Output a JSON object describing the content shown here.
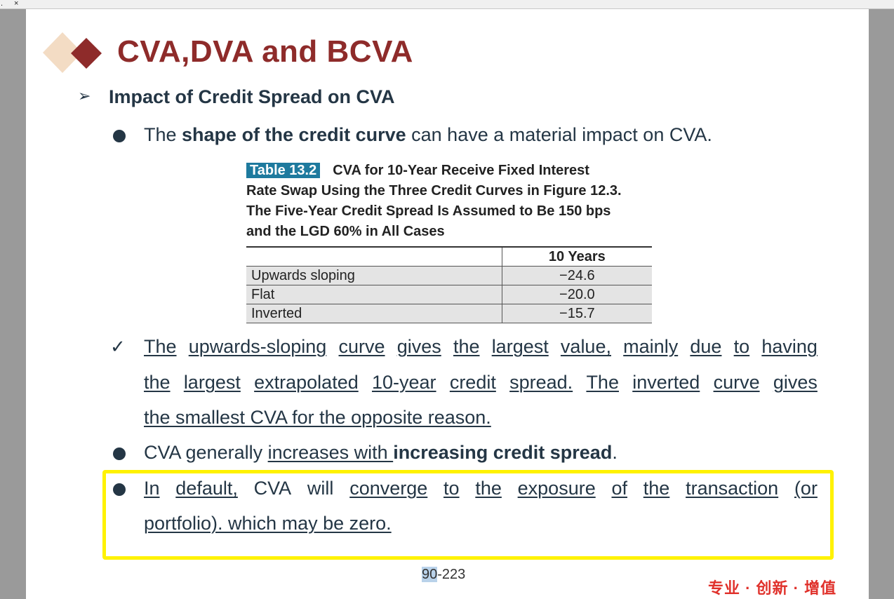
{
  "topbar": {
    "dot": ".",
    "close": "×"
  },
  "slide": {
    "title": "CVA,DVA and BCVA",
    "heading": "Impact of Credit Spread on CVA",
    "bullet1": {
      "pre": "The ",
      "bold": "shape of the credit curve",
      "post": " can have a material impact on CVA."
    },
    "table": {
      "tag": "Table 13.2",
      "caption_lines": [
        "CVA for 10-Year Receive Fixed Interest",
        "Rate Swap Using the Three Credit Curves in Figure 12.3.",
        "The Five-Year Credit Spread Is Assumed to Be 150 bps",
        "and the LGD 60% in All Cases"
      ],
      "column_header": "10 Years",
      "rows": [
        {
          "label": "Upwards sloping",
          "value": "−24.6"
        },
        {
          "label": "Flat",
          "value": "−20.0"
        },
        {
          "label": "Inverted",
          "value": "−15.7"
        }
      ]
    },
    "check_mark": "✓",
    "check_lines": [
      [
        "The",
        "upwards-sloping",
        "curve",
        "gives",
        "the",
        "largest",
        "value,",
        "mainly",
        "due",
        "to",
        "having"
      ],
      [
        "the",
        "largest",
        "extrapolated",
        "10-year",
        "credit",
        "spread.",
        "The",
        "inverted",
        "curve",
        "gives"
      ]
    ],
    "check_last": "the smallest CVA for the opposite reason.",
    "bullet2": {
      "pre": "CVA generally ",
      "underlined": "increases with ",
      "bold": "increasing credit spread",
      "post": "."
    },
    "bullet3_line1": [
      "In",
      "default,",
      "CVA",
      "will",
      "converge",
      "to",
      "the",
      "exposure",
      "of",
      "the",
      "transaction",
      "(or"
    ],
    "bullet3_line2": "portfolio). which may be zero.",
    "page_number_sel": "90",
    "page_number_rest": "-223",
    "slogan": "专业 · 创新 · 增值"
  }
}
